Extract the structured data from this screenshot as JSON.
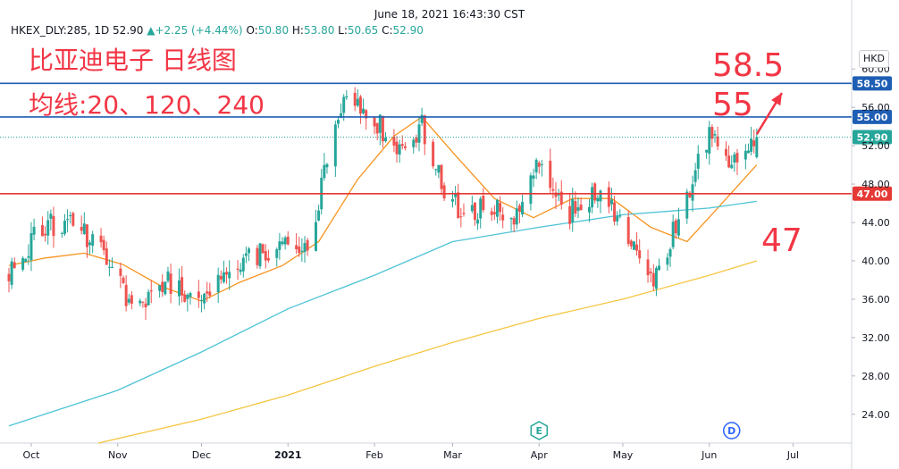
{
  "header": {
    "timestamp": "June 18, 2021 16:43:30 CST",
    "symbol": "HKEX_DLY:285, 1D",
    "last": "52.90",
    "change": "+2.25 (+4.44%)",
    "o_label": "O:",
    "o_value": "50.80",
    "h_label": "H:",
    "h_value": "53.80",
    "l_label": "L:",
    "l_value": "50.65",
    "c_label": "C:",
    "c_value": "52.90"
  },
  "annotations": {
    "title": "比亚迪电子 日线图",
    "ma_note": "均线:20、120、240",
    "target_58": "58.5",
    "target_55": "55",
    "support_47": "47"
  },
  "currency": "HKD",
  "colors": {
    "up": "#26a69a",
    "down": "#ef5350",
    "ma20": "#f7931e",
    "ma120": "#4dc3d6",
    "ma240": "#f5c542",
    "resistance": "#1e5eb4",
    "support": "#e53935",
    "annotation": "#f23645",
    "last_price": "#26a69a"
  },
  "chart_data": {
    "type": "candlestick",
    "y_axis": {
      "min": 21,
      "max": 63,
      "ticks": [
        "24.00",
        "28.00",
        "32.00",
        "36.00",
        "40.00",
        "44.00",
        "48.00",
        "52.00",
        "56.00",
        "60.00"
      ]
    },
    "x_axis": {
      "labels": [
        {
          "label": "Oct",
          "date": "2020-10-01"
        },
        {
          "label": "Nov",
          "date": "2020-11-01"
        },
        {
          "label": "Dec",
          "date": "2020-12-01"
        },
        {
          "label": "2021",
          "date": "2021-01-01"
        },
        {
          "label": "Feb",
          "date": "2021-02-01"
        },
        {
          "label": "Mar",
          "date": "2021-03-01"
        },
        {
          "label": "Apr",
          "date": "2021-04-01"
        },
        {
          "label": "May",
          "date": "2021-05-01"
        },
        {
          "label": "Jun",
          "date": "2021-06-01"
        },
        {
          "label": "Jul",
          "date": "2021-07-01"
        }
      ]
    },
    "horizontal_lines": [
      {
        "value": 58.5,
        "label": "58.50",
        "color": "#1e5eb4"
      },
      {
        "value": 55.0,
        "label": "55.00",
        "color": "#1e5eb4"
      },
      {
        "value": 52.9,
        "label": "52.90",
        "color": "#26a69a",
        "dotted": true
      },
      {
        "value": 47.0,
        "label": "47.00",
        "color": "#e53935"
      }
    ],
    "events": [
      {
        "label": "E",
        "date": "2021-04-01"
      },
      {
        "label": "D",
        "date": "2021-06-09"
      }
    ],
    "anchors": [
      {
        "date": "2020-09-23",
        "price": 38.5
      },
      {
        "date": "2020-10-05",
        "price": 43.5
      },
      {
        "date": "2020-10-16",
        "price": 44.0
      },
      {
        "date": "2020-10-29",
        "price": 40.0
      },
      {
        "date": "2020-11-06",
        "price": 34.5
      },
      {
        "date": "2020-11-17",
        "price": 38.0
      },
      {
        "date": "2020-11-27",
        "price": 36.0
      },
      {
        "date": "2020-12-08",
        "price": 38.5
      },
      {
        "date": "2020-12-18",
        "price": 40.0
      },
      {
        "date": "2020-12-31",
        "price": 42.0
      },
      {
        "date": "2021-01-08",
        "price": 41.0
      },
      {
        "date": "2021-01-15",
        "price": 50.0
      },
      {
        "date": "2021-01-22",
        "price": 58.0
      },
      {
        "date": "2021-01-29",
        "price": 56.0
      },
      {
        "date": "2021-02-08",
        "price": 52.0
      },
      {
        "date": "2021-02-18",
        "price": 54.0
      },
      {
        "date": "2021-02-26",
        "price": 47.0
      },
      {
        "date": "2021-03-05",
        "price": 45.0
      },
      {
        "date": "2021-03-15",
        "price": 46.0
      },
      {
        "date": "2021-03-25",
        "price": 44.0
      },
      {
        "date": "2021-04-01",
        "price": 51.0
      },
      {
        "date": "2021-04-12",
        "price": 45.0
      },
      {
        "date": "2021-04-23",
        "price": 47.5
      },
      {
        "date": "2021-05-04",
        "price": 42.0
      },
      {
        "date": "2021-05-13",
        "price": 38.0
      },
      {
        "date": "2021-05-24",
        "price": 47.0
      },
      {
        "date": "2021-06-01",
        "price": 53.0
      },
      {
        "date": "2021-06-11",
        "price": 50.0
      },
      {
        "date": "2021-06-18",
        "price": 52.9
      }
    ],
    "moving_averages": [
      {
        "name": "MA20",
        "period": 20,
        "points": [
          {
            "date": "2020-09-23",
            "value": 39.5
          },
          {
            "date": "2020-10-06",
            "value": 40.3
          },
          {
            "date": "2020-10-20",
            "value": 40.8
          },
          {
            "date": "2020-11-03",
            "value": 39.6
          },
          {
            "date": "2020-11-17",
            "value": 37.3
          },
          {
            "date": "2020-12-01",
            "value": 35.8
          },
          {
            "date": "2020-12-15",
            "value": 37.8
          },
          {
            "date": "2020-12-30",
            "value": 39.5
          },
          {
            "date": "2021-01-12",
            "value": 42.0
          },
          {
            "date": "2021-01-26",
            "value": 48.5
          },
          {
            "date": "2021-02-08",
            "value": 53.0
          },
          {
            "date": "2021-02-18",
            "value": 55.0
          },
          {
            "date": "2021-03-02",
            "value": 51.0
          },
          {
            "date": "2021-03-16",
            "value": 46.5
          },
          {
            "date": "2021-03-30",
            "value": 44.5
          },
          {
            "date": "2021-04-13",
            "value": 46.5
          },
          {
            "date": "2021-04-27",
            "value": 46.5
          },
          {
            "date": "2021-05-11",
            "value": 43.5
          },
          {
            "date": "2021-05-24",
            "value": 42.0
          },
          {
            "date": "2021-06-04",
            "value": 45.5
          },
          {
            "date": "2021-06-18",
            "value": 50.0
          }
        ]
      },
      {
        "name": "MA120",
        "period": 120,
        "points": [
          {
            "date": "2020-09-23",
            "value": 22.8
          },
          {
            "date": "2020-11-01",
            "value": 26.5
          },
          {
            "date": "2020-12-01",
            "value": 30.5
          },
          {
            "date": "2021-01-01",
            "value": 35.0
          },
          {
            "date": "2021-02-01",
            "value": 38.5
          },
          {
            "date": "2021-03-01",
            "value": 42.0
          },
          {
            "date": "2021-04-01",
            "value": 43.5
          },
          {
            "date": "2021-05-01",
            "value": 44.8
          },
          {
            "date": "2021-06-01",
            "value": 45.5
          },
          {
            "date": "2021-06-18",
            "value": 46.2
          }
        ]
      },
      {
        "name": "MA240",
        "period": 240,
        "points": [
          {
            "date": "2020-10-25",
            "value": 21.0
          },
          {
            "date": "2020-12-01",
            "value": 23.5
          },
          {
            "date": "2021-01-01",
            "value": 26.0
          },
          {
            "date": "2021-02-01",
            "value": 29.0
          },
          {
            "date": "2021-03-01",
            "value": 31.5
          },
          {
            "date": "2021-04-01",
            "value": 34.0
          },
          {
            "date": "2021-05-01",
            "value": 36.0
          },
          {
            "date": "2021-06-01",
            "value": 38.5
          },
          {
            "date": "2021-06-18",
            "value": 40.0
          }
        ]
      }
    ],
    "arrow": {
      "from_date": "2021-06-18",
      "from_value": 53.2,
      "to_date": "2021-06-27",
      "to_value": 57.5
    }
  }
}
